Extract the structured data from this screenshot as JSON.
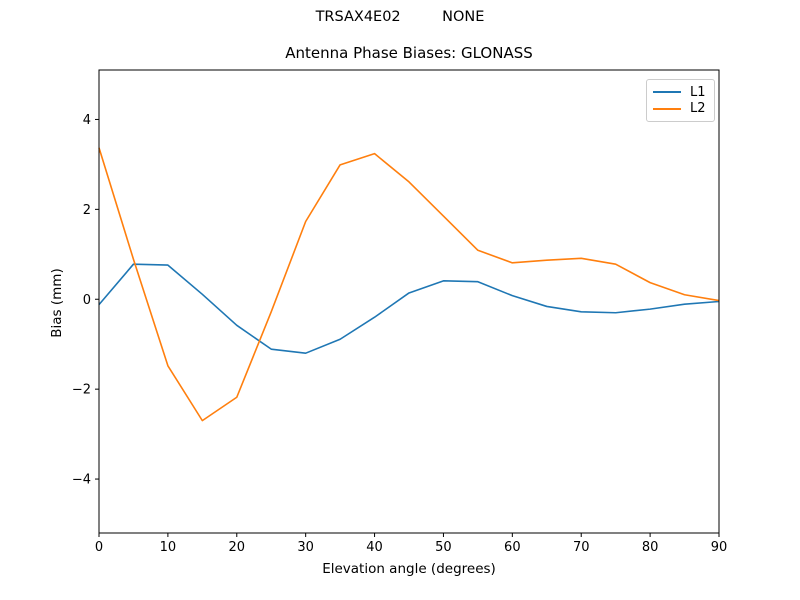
{
  "figure": {
    "suptitle": "TRSAX4E02         NONE"
  },
  "chart_data": {
    "type": "line",
    "title": "Antenna Phase Biases: GLONASS",
    "xlabel": "Elevation angle (degrees)",
    "ylabel": "Bias (mm)",
    "xlim": [
      0,
      90
    ],
    "ylim": [
      -5.2,
      5.1
    ],
    "grid": false,
    "legend_position": "upper right",
    "x": [
      0,
      5,
      10,
      15,
      20,
      25,
      30,
      35,
      40,
      45,
      50,
      55,
      60,
      65,
      70,
      75,
      80,
      85,
      90
    ],
    "series": [
      {
        "name": "L1",
        "color": "#1f77b4",
        "values": [
          -0.12,
          0.78,
          0.76,
          0.11,
          -0.58,
          -1.11,
          -1.2,
          -0.89,
          -0.4,
          0.14,
          0.41,
          0.39,
          0.08,
          -0.16,
          -0.28,
          -0.3,
          -0.22,
          -0.11,
          -0.05
        ]
      },
      {
        "name": "L2",
        "color": "#ff7f0e",
        "values": [
          3.37,
          0.89,
          -1.48,
          -2.7,
          -2.18,
          -0.28,
          1.73,
          2.99,
          3.24,
          2.61,
          1.85,
          1.09,
          0.81,
          0.87,
          0.91,
          0.78,
          0.37,
          0.1,
          -0.03
        ]
      }
    ],
    "x_ticks": {
      "values": [
        0,
        10,
        20,
        30,
        40,
        50,
        60,
        70,
        80,
        90
      ],
      "labels": [
        "0",
        "10",
        "20",
        "30",
        "40",
        "50",
        "60",
        "70",
        "80",
        "90"
      ]
    },
    "y_ticks": {
      "values": [
        4,
        2,
        0,
        -2,
        -4
      ],
      "labels": [
        "4",
        "2",
        "0",
        "−2",
        "−4"
      ]
    },
    "axis_color": "#000000",
    "tick_label_color": "#000000"
  }
}
